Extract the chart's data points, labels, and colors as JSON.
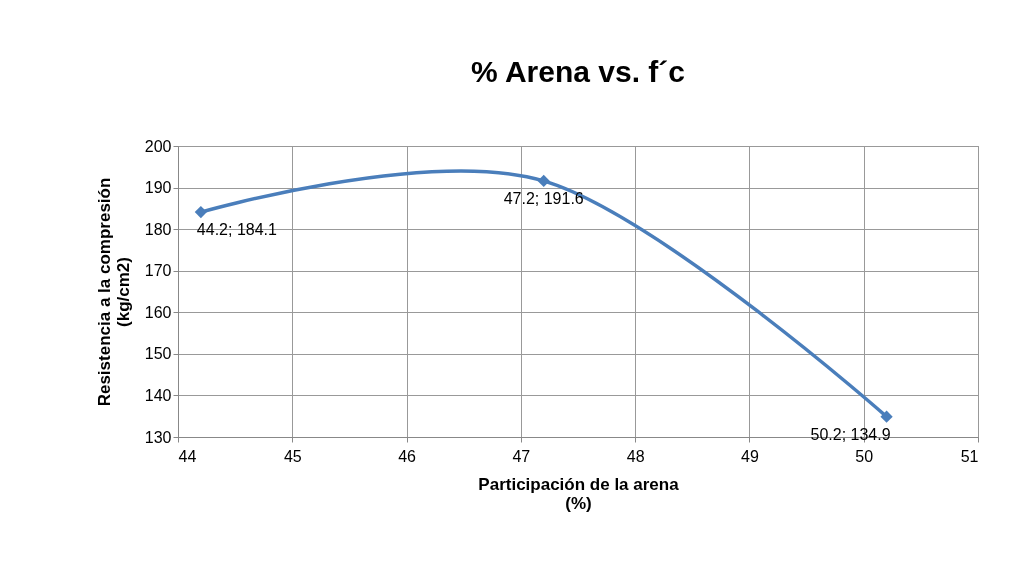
{
  "chart_data": {
    "type": "line",
    "title": "% Arena vs. f´c",
    "xlabel": "Participación de la arena\n(%)",
    "ylabel": "Resistencia a la compresión\n(kg/cm2)",
    "x": [
      44.2,
      47.2,
      50.2
    ],
    "series": [
      {
        "color": "#4a7ebb",
        "values": [
          184.1,
          191.6,
          134.9
        ],
        "value_labels": [
          "44.2; 184.1",
          "47.2; 191.6",
          "50.2; 134.9"
        ]
      }
    ],
    "xlim": [
      44,
      51
    ],
    "xticks": [
      44,
      45,
      46,
      47,
      48,
      49,
      50,
      51
    ],
    "ylim": [
      130,
      200
    ],
    "yticks": [
      130,
      140,
      150,
      160,
      170,
      180,
      190,
      200
    ],
    "grid": true,
    "marker": "diamond",
    "line_style": "solid"
  }
}
